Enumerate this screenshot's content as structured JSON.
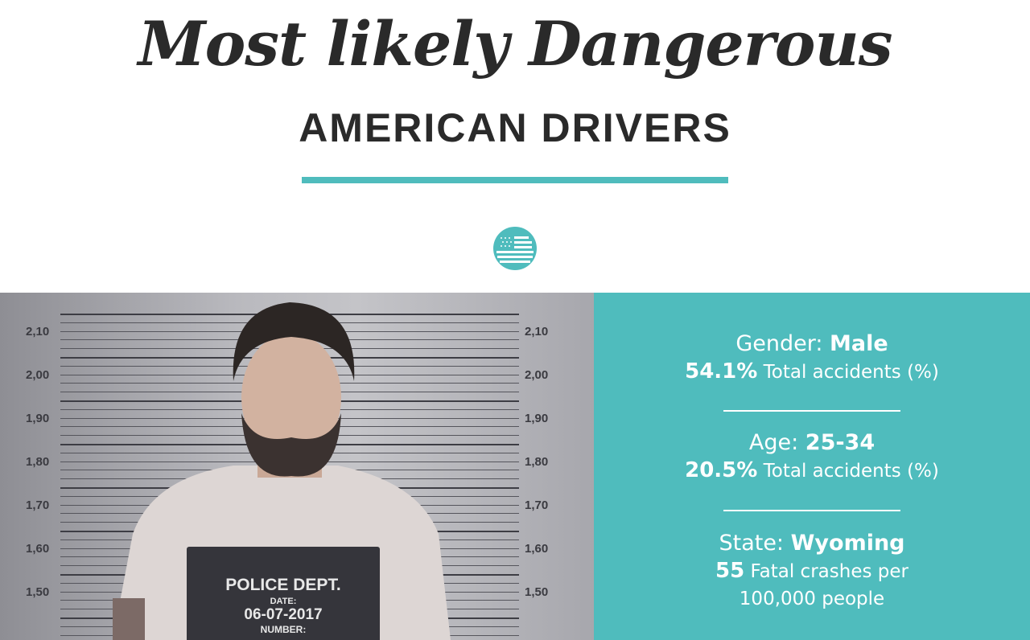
{
  "header": {
    "title": "Most likely Dangerous",
    "subtitle": "AMERICAN DRIVERS",
    "flag_icon": "us-flag-icon",
    "accent": "#4fbcbd"
  },
  "photo": {
    "height_marks": [
      "2,10",
      "2,00",
      "1,90",
      "1,80",
      "1,70",
      "1,60",
      "1,50"
    ],
    "sign": {
      "title": "POLICE DEPT.",
      "date_label": "DATE:",
      "date": "06-07-2017",
      "number_label": "NUMBER:"
    }
  },
  "stats": [
    {
      "label": "Gender:",
      "value": "Male",
      "figure": "54.1%",
      "desc": "Total accidents (%)"
    },
    {
      "label": "Age:",
      "value": "25-34",
      "figure": "20.5%",
      "desc": "Total accidents (%)"
    },
    {
      "label": "State:",
      "value": "Wyoming",
      "figure": "55",
      "desc": "Fatal crashes per",
      "desc2": "100,000 people"
    }
  ]
}
